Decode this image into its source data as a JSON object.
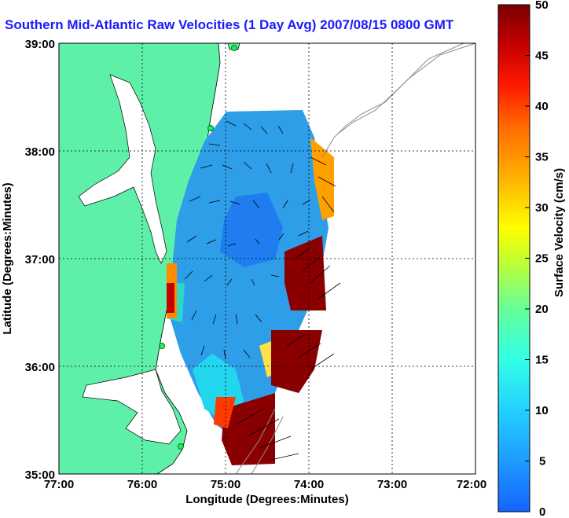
{
  "title": "Southern Mid-Atlantic Raw Velocities (1 Day Avg) 2007/08/15 0800 GMT",
  "colors": {
    "land": "#5ef0a8",
    "title": "#1a1aff",
    "velocity_scale": [
      "#1463ff",
      "#1e9bff",
      "#22d0ff",
      "#33ffe6",
      "#66ff99",
      "#c6ff2a",
      "#ffff00",
      "#ffb000",
      "#ff6a00",
      "#ff1a00",
      "#c40000",
      "#7a0000"
    ]
  },
  "map": {
    "xlabel": "Longitude (Degrees:Minutes)",
    "ylabel": "Latitude (Degrees:Minutes)",
    "x_ticks": [
      "77:00",
      "76:00",
      "75:00",
      "74:00",
      "73:00",
      "72:00"
    ],
    "y_ticks": [
      "39:00",
      "38:00",
      "37:00",
      "36:00",
      "35:00"
    ],
    "lon_range": [
      -77,
      -72
    ],
    "lat_range": [
      35,
      39
    ],
    "grid": "dotted"
  },
  "colorbar": {
    "label": "Surface Velocity (cm/s)",
    "ticks": [
      "50",
      "45",
      "40",
      "35",
      "30",
      "25",
      "20",
      "15",
      "10",
      "5",
      "0"
    ],
    "range": [
      0,
      50
    ]
  }
}
